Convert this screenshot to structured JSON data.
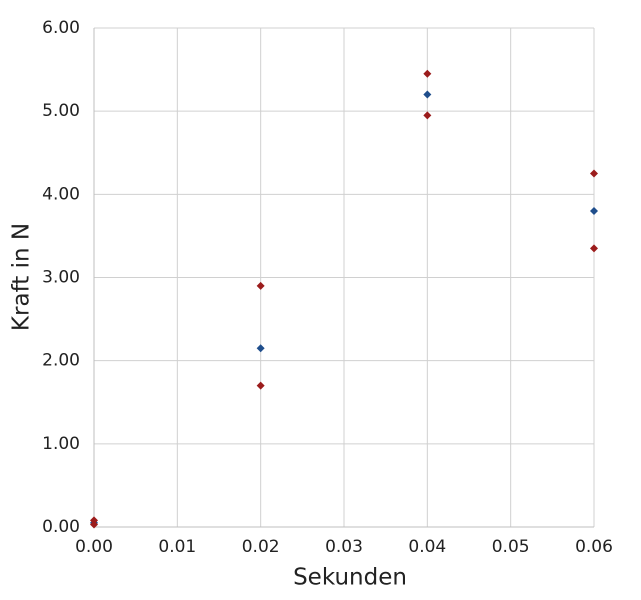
{
  "chart_data": {
    "type": "scatter",
    "x_label": "Sekunden",
    "y_label": "Kraft in N",
    "series": [
      {
        "color": "#1f4e8c",
        "x": [
          0,
          0.02,
          0.04,
          0.06
        ],
        "values": [
          0.05,
          2.15,
          5.2,
          3.8
        ]
      },
      {
        "color": "#9b1c1c",
        "x": [
          0,
          0.02,
          0.04,
          0.06
        ],
        "values": [
          0.08,
          2.9,
          5.45,
          4.25
        ]
      },
      {
        "color": "#9b1c1c",
        "x": [
          0,
          0.02,
          0.04,
          0.06
        ],
        "values": [
          0.03,
          1.7,
          4.95,
          3.35
        ]
      }
    ],
    "xlim": [
      0,
      0.06
    ],
    "ylim": [
      0,
      6
    ],
    "xticks": [
      {
        "value": 0,
        "label": "0.00"
      },
      {
        "value": 0.01,
        "label": "0.01"
      },
      {
        "value": 0.02,
        "label": "0.02"
      },
      {
        "value": 0.03,
        "label": "0.03"
      },
      {
        "value": 0.04,
        "label": "0.04"
      },
      {
        "value": 0.05,
        "label": "0.05"
      },
      {
        "value": 0.06,
        "label": "0.06"
      }
    ],
    "yticks": [
      {
        "value": 0,
        "label": "0.00"
      },
      {
        "value": 1,
        "label": "1.00"
      },
      {
        "value": 2,
        "label": "2.00"
      },
      {
        "value": 3,
        "label": "3.00"
      },
      {
        "value": 4,
        "label": "4.00"
      },
      {
        "value": 5,
        "label": "5.00"
      },
      {
        "value": 6,
        "label": "6.00"
      }
    ],
    "grid": true
  }
}
